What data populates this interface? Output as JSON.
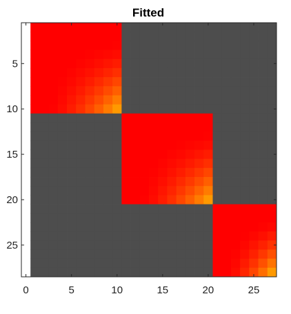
{
  "chart_data": {
    "type": "heatmap",
    "title": "Fitted",
    "xlabel": "",
    "ylabel": "",
    "x_range": [
      -0.5,
      27.5
    ],
    "y_range": [
      0.5,
      28.5
    ],
    "y_reversed": true,
    "x_ticks": [
      0,
      5,
      10,
      15,
      20,
      25
    ],
    "y_ticks": [
      5,
      10,
      15,
      20,
      25
    ],
    "columns": 27,
    "rows": 28,
    "background_color": "#4d4d4d",
    "colormap": [
      "#ff0000",
      "#ff9900"
    ],
    "blocks": [
      {
        "row_start": 1,
        "row_end": 10,
        "col_start": 1,
        "col_end": 10
      },
      {
        "row_start": 11,
        "row_end": 20,
        "col_start": 11,
        "col_end": 20
      },
      {
        "row_start": 21,
        "row_end": 28,
        "col_start": 21,
        "col_end": 27
      }
    ],
    "grid": false,
    "legend": false
  }
}
